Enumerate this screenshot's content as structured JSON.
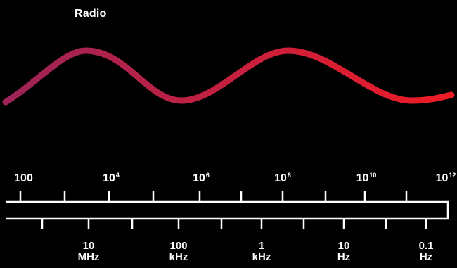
{
  "title": "Radio",
  "wave": {
    "start_color": "#9c2458",
    "end_color": "#ee1c25"
  },
  "wavelength_labels": [
    {
      "base": "100",
      "exp": ""
    },
    {
      "base": "10",
      "exp": "4"
    },
    {
      "base": "10",
      "exp": "6"
    },
    {
      "base": "10",
      "exp": "8"
    },
    {
      "base": "10",
      "exp": "10"
    },
    {
      "base": "10",
      "exp": "12"
    }
  ],
  "frequency_labels": [
    {
      "value": "10",
      "unit": "MHz"
    },
    {
      "value": "100",
      "unit": "kHz"
    },
    {
      "value": "1",
      "unit": "kHz"
    },
    {
      "value": "10",
      "unit": "Hz"
    },
    {
      "value": "0.1",
      "unit": "Hz"
    }
  ]
}
